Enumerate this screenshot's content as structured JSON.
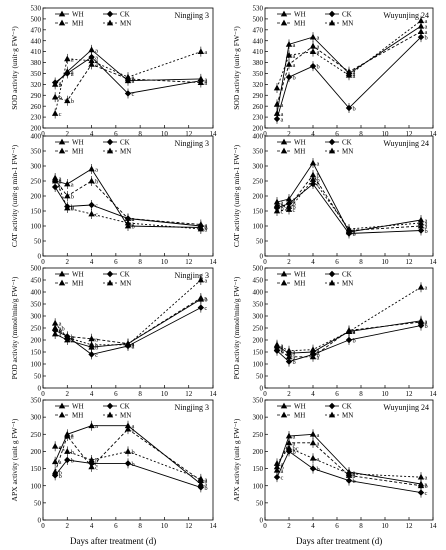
{
  "x_axis_label": "Days after treatment (d)",
  "chart_data": [
    {
      "id": "sod-ningjing3",
      "type": "line",
      "title": "Ningjing 3",
      "ylabel": "SOD activity (unit·g FW⁻¹)",
      "xlim": [
        0,
        14
      ],
      "ylim": [
        200,
        530
      ],
      "yticks": [
        200,
        230,
        260,
        290,
        320,
        350,
        380,
        410,
        440,
        470,
        500,
        530
      ],
      "xticks": [
        0,
        2,
        4,
        6,
        8,
        10,
        12,
        14
      ],
      "x": [
        1,
        2,
        4,
        7,
        13
      ],
      "series": [
        {
          "name": "WH",
          "values": [
            320,
            355,
            415,
            330,
            335
          ],
          "labels": [
            "a",
            "a",
            "a",
            "a",
            "a"
          ]
        },
        {
          "name": "CK",
          "values": [
            325,
            350,
            395,
            295,
            330
          ],
          "labels": [
            "a",
            "a",
            "a",
            "c",
            "a"
          ]
        },
        {
          "name": "MH",
          "values": [
            285,
            275,
            375,
            335,
            325
          ],
          "labels": [
            "b",
            "b",
            "a",
            "b",
            "a"
          ]
        },
        {
          "name": "MN",
          "values": [
            240,
            390,
            385,
            340,
            410
          ],
          "labels": [
            "c",
            "a",
            "a",
            "a",
            "a"
          ]
        }
      ]
    },
    {
      "id": "sod-wuyunjing24",
      "type": "line",
      "title": "Wuyunjing 24",
      "ylabel": "SOD activity (unit·g FW⁻¹)",
      "xlim": [
        0,
        14
      ],
      "ylim": [
        200,
        530
      ],
      "yticks": [
        200,
        230,
        260,
        290,
        320,
        350,
        380,
        410,
        440,
        470,
        500,
        530
      ],
      "xticks": [
        0,
        2,
        4,
        6,
        8,
        10,
        12,
        14
      ],
      "x": [
        1,
        2,
        4,
        7,
        13
      ],
      "series": [
        {
          "name": "WH",
          "values": [
            240,
            430,
            450,
            350,
            480
          ],
          "labels": [
            "a",
            "a",
            "a",
            "a",
            "a"
          ]
        },
        {
          "name": "CK",
          "values": [
            225,
            340,
            370,
            255,
            450
          ],
          "labels": [
            "a",
            "b",
            "b",
            "b",
            "b"
          ]
        },
        {
          "name": "MH",
          "values": [
            265,
            375,
            425,
            355,
            465
          ],
          "labels": [
            "a",
            "a",
            "a",
            "a",
            "a"
          ]
        },
        {
          "name": "MN",
          "values": [
            310,
            400,
            410,
            345,
            495
          ],
          "labels": [
            "a",
            "a",
            "a",
            "a",
            "a"
          ]
        }
      ]
    },
    {
      "id": "cat-ningjing3",
      "type": "line",
      "title": "Ningjing 3",
      "ylabel": "CAT activity (unit·g min-1 FW⁻¹)",
      "xlim": [
        0,
        14
      ],
      "ylim": [
        0,
        400
      ],
      "yticks": [
        0,
        50,
        100,
        150,
        200,
        250,
        300,
        350,
        400
      ],
      "xticks": [
        0,
        2,
        4,
        6,
        8,
        10,
        12,
        14
      ],
      "x": [
        1,
        2,
        4,
        7,
        13
      ],
      "series": [
        {
          "name": "WH",
          "values": [
            250,
            240,
            290,
            100,
            95
          ],
          "labels": [
            "a",
            "a",
            "a",
            "b",
            "b"
          ]
        },
        {
          "name": "CK",
          "values": [
            230,
            165,
            170,
            125,
            100
          ],
          "labels": [
            "b",
            "b",
            "c",
            "a",
            "a"
          ]
        },
        {
          "name": "MH",
          "values": [
            255,
            200,
            250,
            125,
            105
          ],
          "labels": [
            "a",
            "b",
            "b",
            "a",
            "a"
          ]
        },
        {
          "name": "MN",
          "values": [
            260,
            160,
            140,
            110,
            90
          ],
          "labels": [
            "a",
            "b",
            "c",
            "a",
            "a"
          ]
        }
      ]
    },
    {
      "id": "cat-wuyunjing24",
      "type": "line",
      "title": "Wuyunjing 24",
      "ylabel": "CAT activity (unit·g min-1 FW⁻¹)",
      "xlim": [
        0,
        14
      ],
      "ylim": [
        0,
        400
      ],
      "yticks": [
        0,
        50,
        100,
        150,
        200,
        250,
        300,
        350,
        400
      ],
      "xticks": [
        0,
        2,
        4,
        6,
        8,
        10,
        12,
        14
      ],
      "x": [
        1,
        2,
        4,
        7,
        13
      ],
      "series": [
        {
          "name": "WH",
          "values": [
            180,
            190,
            310,
            80,
            120
          ],
          "labels": [
            "a",
            "a",
            "a",
            "a",
            "a"
          ]
        },
        {
          "name": "CK",
          "values": [
            160,
            175,
            240,
            75,
            85
          ],
          "labels": [
            "b",
            "b",
            "b",
            "b",
            "b"
          ]
        },
        {
          "name": "MH",
          "values": [
            170,
            165,
            270,
            85,
            100
          ],
          "labels": [
            "bc",
            "b",
            "b",
            "a",
            "a"
          ]
        },
        {
          "name": "MN",
          "values": [
            150,
            155,
            255,
            90,
            110
          ],
          "labels": [
            "c",
            "c",
            "b",
            "a",
            "a"
          ]
        }
      ]
    },
    {
      "id": "pod-ningjing3",
      "type": "line",
      "title": "Ningjing 3",
      "ylabel": "POD activity (mmol/min/g FW⁻¹)",
      "xlim": [
        0,
        14
      ],
      "ylim": [
        0,
        500
      ],
      "yticks": [
        0,
        50,
        100,
        150,
        200,
        250,
        300,
        350,
        400,
        450,
        500
      ],
      "xticks": [
        0,
        2,
        4,
        6,
        8,
        10,
        12,
        14
      ],
      "x": [
        1,
        2,
        4,
        7,
        13
      ],
      "series": [
        {
          "name": "WH",
          "values": [
            225,
            200,
            170,
            185,
            370
          ],
          "labels": [
            "a",
            "a",
            "b",
            "a",
            "b"
          ]
        },
        {
          "name": "CK",
          "values": [
            240,
            215,
            140,
            175,
            335
          ],
          "labels": [
            "b",
            "b",
            "c",
            "a",
            "c"
          ]
        },
        {
          "name": "MH",
          "values": [
            250,
            215,
            205,
            185,
            375
          ],
          "labels": [
            "ab",
            "a",
            "a",
            "a",
            "a"
          ]
        },
        {
          "name": "MN",
          "values": [
            270,
            210,
            180,
            180,
            450
          ],
          "labels": [
            "a",
            "a",
            "b",
            "a",
            "a"
          ]
        }
      ]
    },
    {
      "id": "pod-wuyunjing24",
      "type": "line",
      "title": "",
      "ylabel": "POD activity (mmol/min/g FW⁻¹)",
      "xlim": [
        0,
        14
      ],
      "ylim": [
        0,
        500
      ],
      "yticks": [
        0,
        50,
        100,
        150,
        200,
        250,
        300,
        350,
        400,
        450,
        500
      ],
      "xticks": [
        0,
        2,
        4,
        6,
        8,
        10,
        12,
        14
      ],
      "x": [
        1,
        2,
        4,
        7,
        13
      ],
      "series": [
        {
          "name": "WH",
          "values": [
            175,
            145,
            150,
            235,
            280
          ],
          "labels": [
            "a",
            "a",
            "a",
            "a",
            "a"
          ]
        },
        {
          "name": "CK",
          "values": [
            155,
            110,
            140,
            200,
            260
          ],
          "labels": [
            "b",
            "b",
            "b",
            "b",
            "b"
          ]
        },
        {
          "name": "MH",
          "values": [
            165,
            130,
            130,
            240,
            275
          ],
          "labels": [
            "a",
            "a",
            "a",
            "a",
            "a"
          ]
        },
        {
          "name": "MN",
          "values": [
            180,
            155,
            160,
            235,
            420
          ],
          "labels": [
            "a",
            "a",
            "a",
            "a",
            "a"
          ]
        }
      ]
    },
    {
      "id": "apx-ningjing3",
      "type": "line",
      "title": "Ningjing 3",
      "ylabel": "APX activity (unit g FW⁻¹)",
      "xlim": [
        0,
        14
      ],
      "ylim": [
        0,
        350
      ],
      "yticks": [
        0,
        50,
        100,
        150,
        200,
        250,
        300,
        350
      ],
      "xticks": [
        0,
        2,
        4,
        6,
        8,
        10,
        12,
        14
      ],
      "x": [
        1,
        2,
        4,
        7,
        13
      ],
      "series": [
        {
          "name": "WH",
          "values": [
            170,
            250,
            275,
            275,
            105
          ],
          "labels": [
            "a",
            "a",
            "a",
            "a",
            "a"
          ]
        },
        {
          "name": "CK",
          "values": [
            130,
            175,
            165,
            165,
            95
          ],
          "labels": [
            "b",
            "b",
            "c",
            "b",
            "b"
          ]
        },
        {
          "name": "MH",
          "values": [
            140,
            245,
            155,
            265,
            115
          ],
          "labels": [
            "b",
            "a",
            "c",
            "a",
            "a"
          ]
        },
        {
          "name": "MN",
          "values": [
            215,
            200,
            175,
            200,
            120
          ],
          "labels": [
            "a",
            "b",
            "b",
            "b",
            "a"
          ]
        }
      ]
    },
    {
      "id": "apx-wuyunjing24",
      "type": "line",
      "title": "Wuyunjing 24",
      "ylabel": "APX activity (unit g FW⁻¹)",
      "xlim": [
        0,
        14
      ],
      "ylim": [
        0,
        350
      ],
      "yticks": [
        0,
        50,
        100,
        150,
        200,
        250,
        300,
        350
      ],
      "xticks": [
        0,
        2,
        4,
        6,
        8,
        10,
        12,
        14
      ],
      "x": [
        1,
        2,
        4,
        7,
        13
      ],
      "series": [
        {
          "name": "WH",
          "values": [
            145,
            245,
            250,
            140,
            105
          ],
          "labels": [
            "a",
            "a",
            "a",
            "a",
            "a"
          ]
        },
        {
          "name": "CK",
          "values": [
            125,
            200,
            150,
            115,
            80
          ],
          "labels": [
            "c",
            "b",
            "b",
            "b",
            "c"
          ]
        },
        {
          "name": "MH",
          "values": [
            155,
            225,
            225,
            130,
            100
          ],
          "labels": [
            "b",
            "a",
            "a",
            "a",
            "b"
          ]
        },
        {
          "name": "MN",
          "values": [
            165,
            210,
            180,
            135,
            125
          ],
          "labels": [
            "a",
            "bc",
            "a",
            "a",
            "a"
          ]
        }
      ]
    }
  ]
}
